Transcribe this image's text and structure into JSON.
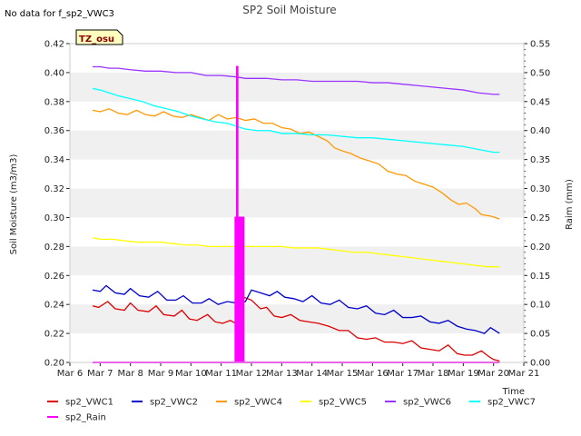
{
  "header": {
    "no_data_text": "No data for f_sp2_VWC3",
    "site_badge": "TZ_osu"
  },
  "chart_data": {
    "type": "line",
    "title": "SP2 Soil Moisture",
    "xlabel": "Time",
    "ylabel": "Soil Moisture (m3/m3)",
    "y2label": "Raim (mm)",
    "x_unit": "day of March",
    "xlim": [
      6,
      21
    ],
    "ylim": [
      0.2,
      0.42
    ],
    "y2lim": [
      0.0,
      0.55
    ],
    "x_ticks": [
      6,
      7,
      8,
      9,
      10,
      11,
      12,
      13,
      14,
      15,
      16,
      17,
      18,
      19,
      20,
      21
    ],
    "x_tick_labels": [
      "Mar 6",
      "Mar 7",
      "Mar 8",
      "Mar 9",
      "Mar 10",
      "Mar 11",
      "Mar 12",
      "Mar 13",
      "Mar 14",
      "Mar 15",
      "Mar 16",
      "Mar 17",
      "Mar 18",
      "Mar 19",
      "Mar 20",
      "Mar 21"
    ],
    "y_ticks": [
      "0.20",
      "0.22",
      "0.24",
      "0.26",
      "0.28",
      "0.30",
      "0.32",
      "0.34",
      "0.36",
      "0.38",
      "0.40",
      "0.42"
    ],
    "y2_ticks": [
      "0.00",
      "0.05",
      "0.10",
      "0.15",
      "0.20",
      "0.25",
      "0.30",
      "0.35",
      "0.40",
      "0.45",
      "0.50",
      "0.55"
    ],
    "grid": "horizontal bands",
    "legend_position": "bottom",
    "series": [
      {
        "name": "sp2_VWC1",
        "axis": "left",
        "color": "#dd0000",
        "x": [
          6.75,
          6.95,
          7.25,
          7.5,
          7.8,
          8.0,
          8.25,
          8.6,
          8.85,
          9.1,
          9.45,
          9.7,
          9.95,
          10.2,
          10.55,
          10.8,
          11.05,
          11.3,
          11.55,
          11.75,
          12.0,
          12.3,
          12.5,
          12.75,
          13.0,
          13.3,
          13.6,
          13.9,
          14.2,
          14.55,
          14.9,
          15.2,
          15.5,
          15.8,
          16.1,
          16.4,
          16.7,
          17.0,
          17.3,
          17.6,
          17.9,
          18.2,
          18.5,
          18.8,
          19.05,
          19.3,
          19.6,
          19.85,
          20.0,
          20.2
        ],
        "values": [
          0.239,
          0.238,
          0.242,
          0.237,
          0.236,
          0.241,
          0.236,
          0.235,
          0.239,
          0.233,
          0.232,
          0.236,
          0.23,
          0.229,
          0.233,
          0.228,
          0.227,
          0.229,
          0.226,
          0.245,
          0.243,
          0.237,
          0.238,
          0.232,
          0.231,
          0.233,
          0.229,
          0.228,
          0.227,
          0.225,
          0.222,
          0.222,
          0.217,
          0.216,
          0.217,
          0.214,
          0.214,
          0.213,
          0.215,
          0.21,
          0.209,
          0.208,
          0.212,
          0.206,
          0.205,
          0.205,
          0.208,
          0.204,
          0.202,
          0.201
        ]
      },
      {
        "name": "sp2_VWC2",
        "axis": "left",
        "color": "#0000cc",
        "x": [
          6.75,
          7.0,
          7.2,
          7.5,
          7.8,
          8.0,
          8.3,
          8.6,
          8.9,
          9.2,
          9.5,
          9.75,
          10.05,
          10.35,
          10.6,
          10.9,
          11.2,
          11.5,
          11.8,
          12.0,
          12.3,
          12.6,
          12.85,
          13.1,
          13.4,
          13.7,
          14.0,
          14.3,
          14.6,
          14.9,
          15.2,
          15.5,
          15.8,
          16.1,
          16.4,
          16.7,
          17.0,
          17.3,
          17.6,
          17.9,
          18.2,
          18.5,
          18.8,
          19.1,
          19.4,
          19.7,
          19.9,
          20.2
        ],
        "values": [
          0.25,
          0.249,
          0.253,
          0.248,
          0.247,
          0.251,
          0.246,
          0.245,
          0.249,
          0.243,
          0.243,
          0.246,
          0.241,
          0.241,
          0.244,
          0.24,
          0.242,
          0.241,
          0.242,
          0.25,
          0.248,
          0.246,
          0.249,
          0.245,
          0.244,
          0.242,
          0.246,
          0.241,
          0.24,
          0.243,
          0.238,
          0.237,
          0.239,
          0.234,
          0.233,
          0.236,
          0.231,
          0.231,
          0.232,
          0.228,
          0.227,
          0.229,
          0.225,
          0.223,
          0.222,
          0.22,
          0.224,
          0.22
        ]
      },
      {
        "name": "sp2_VWC4",
        "axis": "left",
        "color": "#ff9900",
        "x": [
          6.75,
          7.0,
          7.3,
          7.6,
          7.9,
          8.2,
          8.5,
          8.8,
          9.1,
          9.4,
          9.7,
          10.0,
          10.3,
          10.6,
          10.9,
          11.2,
          11.5,
          11.8,
          12.1,
          12.4,
          12.7,
          13.0,
          13.3,
          13.6,
          13.9,
          14.2,
          14.5,
          14.75,
          15.0,
          15.3,
          15.6,
          15.9,
          16.2,
          16.5,
          16.8,
          17.1,
          17.4,
          17.7,
          18.0,
          18.3,
          18.6,
          18.85,
          19.1,
          19.4,
          19.6,
          19.9,
          20.2
        ],
        "values": [
          0.374,
          0.373,
          0.375,
          0.372,
          0.371,
          0.374,
          0.371,
          0.37,
          0.373,
          0.37,
          0.369,
          0.371,
          0.369,
          0.367,
          0.371,
          0.368,
          0.369,
          0.367,
          0.368,
          0.365,
          0.365,
          0.362,
          0.361,
          0.358,
          0.359,
          0.356,
          0.353,
          0.348,
          0.346,
          0.344,
          0.341,
          0.339,
          0.337,
          0.332,
          0.33,
          0.329,
          0.325,
          0.323,
          0.321,
          0.317,
          0.312,
          0.309,
          0.31,
          0.306,
          0.302,
          0.301,
          0.299
        ]
      },
      {
        "name": "sp2_VWC5",
        "axis": "left",
        "color": "#ffff00",
        "x": [
          6.75,
          7.0,
          7.4,
          7.8,
          8.2,
          8.6,
          9.0,
          9.4,
          9.8,
          10.2,
          10.6,
          11.0,
          11.4,
          11.8,
          12.2,
          12.6,
          13.0,
          13.4,
          13.8,
          14.2,
          14.6,
          15.0,
          15.4,
          15.8,
          16.2,
          16.6,
          17.0,
          17.4,
          17.8,
          18.2,
          18.6,
          19.0,
          19.4,
          19.8,
          20.2
        ],
        "values": [
          0.286,
          0.285,
          0.285,
          0.284,
          0.283,
          0.283,
          0.283,
          0.282,
          0.281,
          0.281,
          0.28,
          0.28,
          0.28,
          0.28,
          0.28,
          0.28,
          0.28,
          0.279,
          0.279,
          0.279,
          0.278,
          0.277,
          0.276,
          0.276,
          0.275,
          0.274,
          0.273,
          0.272,
          0.271,
          0.27,
          0.269,
          0.268,
          0.267,
          0.266,
          0.266
        ]
      },
      {
        "name": "sp2_VWC6",
        "axis": "left",
        "color": "#9933ff",
        "x": [
          6.75,
          7.0,
          7.3,
          7.6,
          8.0,
          8.5,
          9.0,
          9.5,
          10.0,
          10.5,
          11.0,
          11.5,
          11.8,
          12.0,
          12.5,
          13.0,
          13.5,
          14.0,
          14.5,
          15.0,
          15.5,
          16.0,
          16.5,
          17.0,
          17.5,
          18.0,
          18.5,
          19.0,
          19.5,
          20.0,
          20.2
        ],
        "values": [
          0.404,
          0.404,
          0.403,
          0.403,
          0.402,
          0.401,
          0.401,
          0.4,
          0.4,
          0.398,
          0.398,
          0.397,
          0.396,
          0.396,
          0.396,
          0.395,
          0.395,
          0.394,
          0.394,
          0.394,
          0.394,
          0.393,
          0.393,
          0.392,
          0.391,
          0.39,
          0.389,
          0.388,
          0.386,
          0.385,
          0.385
        ]
      },
      {
        "name": "sp2_VWC7",
        "axis": "left",
        "color": "#00ffff",
        "x": [
          6.75,
          7.0,
          7.3,
          7.6,
          8.0,
          8.4,
          8.8,
          9.2,
          9.6,
          10.0,
          10.4,
          10.8,
          11.2,
          11.5,
          11.8,
          12.2,
          12.6,
          13.0,
          13.5,
          14.0,
          14.5,
          15.0,
          15.5,
          16.0,
          16.5,
          17.0,
          17.5,
          18.0,
          18.5,
          19.0,
          19.5,
          20.0,
          20.2
        ],
        "values": [
          0.389,
          0.388,
          0.386,
          0.384,
          0.382,
          0.38,
          0.377,
          0.375,
          0.373,
          0.37,
          0.368,
          0.366,
          0.365,
          0.363,
          0.361,
          0.36,
          0.36,
          0.358,
          0.358,
          0.357,
          0.357,
          0.356,
          0.355,
          0.355,
          0.354,
          0.353,
          0.352,
          0.351,
          0.35,
          0.349,
          0.347,
          0.345,
          0.345
        ]
      },
      {
        "name": "sp2_Rain",
        "axis": "right",
        "color": "#ff00ff",
        "x": [
          6.75,
          11.45,
          11.47,
          11.49,
          11.52,
          11.54,
          11.57,
          11.59,
          11.62,
          11.64,
          11.67,
          11.69,
          11.72,
          11.74,
          20.2
        ],
        "values": [
          0.0,
          0.0,
          0.25,
          0.0,
          0.51,
          0.0,
          0.25,
          0.0,
          0.25,
          0.0,
          0.25,
          0.0,
          0.25,
          0.0,
          0.0
        ]
      }
    ]
  }
}
